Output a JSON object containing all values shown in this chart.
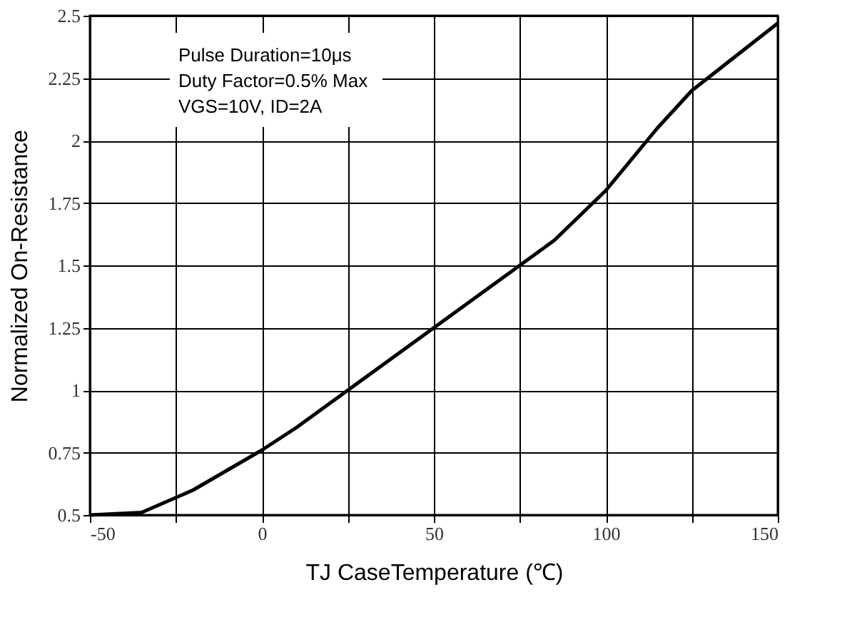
{
  "chart_data": {
    "type": "line",
    "xlabel": "TJ  CaseTemperature (℃)",
    "ylabel": "Normalized On-Resistance",
    "annotations": [
      "Pulse Duration=10μs",
      "Duty Factor=0.5% Max",
      "VGS=10V, ID=2A"
    ],
    "x": [
      -50,
      -35,
      -20,
      -10,
      0,
      10,
      25,
      50,
      75,
      85,
      100,
      115,
      125,
      150
    ],
    "series": [
      {
        "color": "#000000",
        "values": [
          0.5,
          0.51,
          0.6,
          0.68,
          0.76,
          0.85,
          1.0,
          1.25,
          1.5,
          1.6,
          1.8,
          2.05,
          2.2,
          2.47
        ]
      }
    ],
    "xlim": [
      -50,
      150
    ],
    "ylim": [
      0.5,
      2.5
    ],
    "xticks": [
      -50,
      {
        "value": -25,
        "label": null
      },
      0,
      {
        "value": 25,
        "label": null
      },
      50,
      {
        "value": 75,
        "label": null
      },
      100,
      {
        "value": 125,
        "label": null
      },
      150
    ],
    "yticks": [
      0.5,
      0.75,
      1,
      1.25,
      1.5,
      1.75,
      2,
      2.25,
      2.5
    ],
    "grid": true,
    "marker": "none",
    "line_style": "solid"
  }
}
